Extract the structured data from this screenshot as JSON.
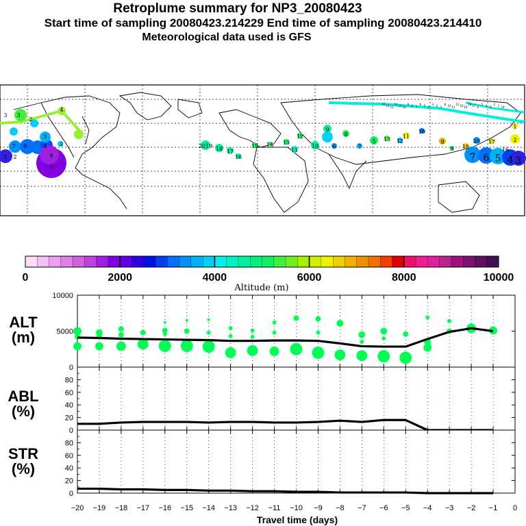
{
  "header": {
    "title": "Retroplume summary for NP3_20080423",
    "sampling": "Start time of sampling 20080423.214229     End time of sampling 20080423.214410",
    "met": "Meteorological data used is GFS"
  },
  "map_labels": [
    "3",
    "3",
    "2",
    "4",
    "7",
    "6",
    "5",
    "4",
    "2",
    "9",
    "1",
    "2",
    "0",
    "2019",
    "18",
    "17",
    "16",
    "15",
    "14",
    "13",
    "12",
    "11",
    "10",
    "9",
    "8",
    "7",
    "6",
    "5",
    "13",
    "12",
    "11",
    "10",
    "9",
    "8",
    "7",
    "6",
    "5",
    "4",
    "3",
    "2",
    "1",
    "20",
    "18",
    "17",
    "16",
    "15",
    "14",
    "13",
    "12",
    "11",
    "10",
    "9",
    "8",
    "7",
    "6",
    "5",
    "4",
    "3",
    "2",
    "1",
    "8",
    "10",
    "11",
    "13",
    "20",
    "19",
    "18",
    "17",
    "6",
    "5",
    "4",
    "3",
    "2",
    "1",
    "18"
  ],
  "colorbar": {
    "colors": [
      "#f8ddf8",
      "#f2c0f2",
      "#eaa0ee",
      "#e080e6",
      "#d260e0",
      "#c040e0",
      "#a020e0",
      "#8000e0",
      "#6000e0",
      "#3000e0",
      "#0010e0",
      "#0040f0",
      "#0070f8",
      "#0090f8",
      "#00b0f8",
      "#00d0f8",
      "#00f0f0",
      "#00f0c8",
      "#00f0a0",
      "#00f080",
      "#10f060",
      "#40f040",
      "#70f020",
      "#a0f000",
      "#d0f000",
      "#f0f000",
      "#f0d000",
      "#f0b000",
      "#f09000",
      "#f07000",
      "#f04000",
      "#e00000",
      "#f0106a",
      "#f02090",
      "#e020a0",
      "#c02090",
      "#a01080",
      "#801070",
      "#601060",
      "#401050"
    ],
    "tick_labels": [
      "0",
      "2000",
      "4000",
      "6000",
      "8000",
      "10000"
    ],
    "label": "Altitude (m)"
  },
  "chart_data": [
    {
      "type": "line",
      "title": "ALT (m)",
      "ylabel_main": "ALT",
      "ylabel_unit": "(m)",
      "xlabel": "Travel time (days)",
      "xlim": [
        -20,
        0
      ],
      "ylim": [
        0,
        10000
      ],
      "yticks": [
        "0",
        "5000",
        "10000"
      ],
      "x": [
        -20,
        -19,
        -18,
        -17,
        -16,
        -15,
        -14,
        -13,
        -12,
        -11,
        -10,
        -9,
        -8,
        -7,
        -6,
        -5,
        -4,
        -3,
        -2,
        -1
      ],
      "series": [
        {
          "name": "mean altitude",
          "values": [
            4100,
            4050,
            3950,
            3900,
            3850,
            3800,
            3750,
            3650,
            3650,
            3700,
            3700,
            3650,
            3300,
            2900,
            2850,
            2850,
            3900,
            4900,
            5400,
            5000
          ]
        }
      ],
      "scatter_points": [
        {
          "x": -20,
          "y": 5000,
          "s": 6
        },
        {
          "x": -20,
          "y": 4200,
          "s": 4
        },
        {
          "x": -20,
          "y": 2900,
          "s": 6
        },
        {
          "x": -19,
          "y": 4800,
          "s": 5
        },
        {
          "x": -19,
          "y": 4300,
          "s": 4
        },
        {
          "x": -19,
          "y": 2900,
          "s": 6
        },
        {
          "x": -18,
          "y": 5300,
          "s": 4
        },
        {
          "x": -18,
          "y": 4500,
          "s": 4
        },
        {
          "x": -18,
          "y": 2900,
          "s": 7
        },
        {
          "x": -17,
          "y": 4800,
          "s": 4
        },
        {
          "x": -17,
          "y": 3200,
          "s": 8
        },
        {
          "x": -16,
          "y": 6200,
          "s": 2
        },
        {
          "x": -16,
          "y": 5100,
          "s": 4
        },
        {
          "x": -16,
          "y": 4600,
          "s": 3
        },
        {
          "x": -16,
          "y": 2950,
          "s": 9
        },
        {
          "x": -15,
          "y": 6500,
          "s": 2
        },
        {
          "x": -15,
          "y": 5000,
          "s": 4
        },
        {
          "x": -15,
          "y": 2950,
          "s": 9
        },
        {
          "x": -14,
          "y": 6600,
          "s": 2
        },
        {
          "x": -14,
          "y": 4800,
          "s": 3
        },
        {
          "x": -14,
          "y": 2850,
          "s": 9
        },
        {
          "x": -13,
          "y": 5400,
          "s": 3
        },
        {
          "x": -13,
          "y": 4300,
          "s": 3
        },
        {
          "x": -13,
          "y": 2000,
          "s": 8
        },
        {
          "x": -12,
          "y": 5100,
          "s": 3
        },
        {
          "x": -12,
          "y": 4200,
          "s": 3
        },
        {
          "x": -12,
          "y": 2300,
          "s": 8
        },
        {
          "x": -11,
          "y": 6200,
          "s": 3
        },
        {
          "x": -11,
          "y": 4800,
          "s": 3
        },
        {
          "x": -11,
          "y": 2200,
          "s": 7
        },
        {
          "x": -10,
          "y": 6800,
          "s": 4
        },
        {
          "x": -10,
          "y": 2500,
          "s": 9
        },
        {
          "x": -9,
          "y": 6700,
          "s": 4
        },
        {
          "x": -9,
          "y": 4800,
          "s": 3
        },
        {
          "x": -9,
          "y": 2000,
          "s": 9
        },
        {
          "x": -8,
          "y": 6100,
          "s": 5
        },
        {
          "x": -8,
          "y": 1700,
          "s": 8
        },
        {
          "x": -7,
          "y": 4500,
          "s": 5
        },
        {
          "x": -7,
          "y": 3500,
          "s": 3
        },
        {
          "x": -7,
          "y": 1600,
          "s": 8
        },
        {
          "x": -6,
          "y": 5000,
          "s": 5
        },
        {
          "x": -6,
          "y": 4000,
          "s": 3
        },
        {
          "x": -6,
          "y": 1500,
          "s": 9
        },
        {
          "x": -5,
          "y": 4600,
          "s": 4
        },
        {
          "x": -5,
          "y": 1300,
          "s": 9
        },
        {
          "x": -4,
          "y": 6900,
          "s": 3
        },
        {
          "x": -4,
          "y": 3500,
          "s": 5
        },
        {
          "x": -4,
          "y": 2700,
          "s": 6
        },
        {
          "x": -3,
          "y": 6400,
          "s": 3
        },
        {
          "x": -3,
          "y": 5000,
          "s": 4
        },
        {
          "x": -2,
          "y": 5400,
          "s": 7
        },
        {
          "x": -1,
          "y": 5100,
          "s": 6
        }
      ]
    },
    {
      "type": "line",
      "title": "ABL (%)",
      "ylabel_main": "ABL",
      "ylabel_unit": "(%)",
      "xlim": [
        -20,
        0
      ],
      "ylim": [
        0,
        100
      ],
      "yticks": [
        "0",
        "20",
        "40",
        "60",
        "80"
      ],
      "x": [
        -20,
        -19,
        -18,
        -17,
        -16,
        -15,
        -14,
        -13,
        -12,
        -11,
        -10,
        -9,
        -8,
        -7,
        -6,
        -5,
        -4,
        -3,
        -2,
        -1
      ],
      "series": [
        {
          "name": "ABL",
          "values": [
            10,
            10,
            12,
            13,
            13,
            13,
            12,
            13,
            13,
            12,
            12,
            13,
            15,
            13,
            16,
            16,
            0,
            0,
            0,
            0
          ]
        }
      ]
    },
    {
      "type": "line",
      "title": "STR (%)",
      "ylabel_main": "STR",
      "ylabel_unit": "(%)",
      "xlim": [
        -20,
        0
      ],
      "ylim": [
        0,
        100
      ],
      "yticks": [
        "0",
        "20",
        "40",
        "60",
        "80"
      ],
      "x": [
        -20,
        -19,
        -18,
        -17,
        -16,
        -15,
        -14,
        -13,
        -12,
        -11,
        -10,
        -9,
        -8,
        -7,
        -6,
        -5,
        -4,
        -3,
        -2,
        -1
      ],
      "series": [
        {
          "name": "STR",
          "values": [
            7,
            7,
            6,
            6,
            5,
            5,
            4,
            4,
            3,
            3,
            2,
            2,
            1,
            1,
            1,
            1,
            0,
            0,
            0,
            0
          ]
        }
      ],
      "xticks": [
        "−20",
        "−19",
        "−18",
        "−17",
        "−16",
        "−15",
        "−14",
        "−13",
        "−12",
        "−11",
        "−10",
        "−9",
        "−8",
        "−7",
        "−6",
        "−5",
        "−4",
        "−3",
        "−2",
        "−1",
        "0"
      ]
    }
  ],
  "marker_color": "#00ff55"
}
